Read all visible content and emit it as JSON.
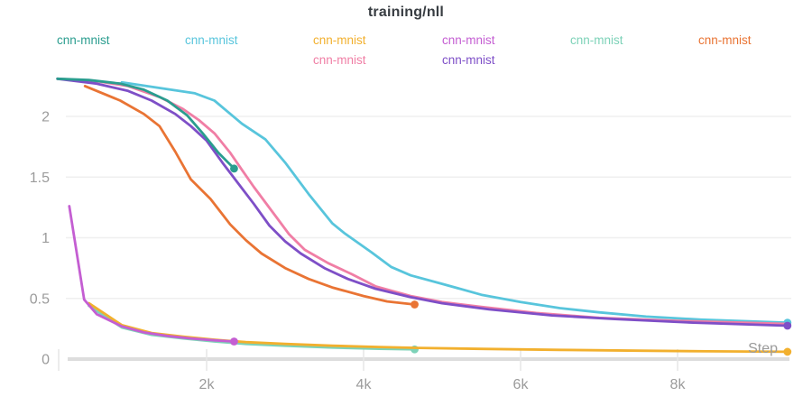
{
  "page": {
    "title": "training/nll"
  },
  "axis": {
    "x_title": "Step",
    "text_color": "#9b9b9b"
  },
  "colors": {
    "grid": "#efefef",
    "baseline": "#dddddd",
    "tick": "#e7e7e7",
    "title_text": "#383d42"
  },
  "legend": {
    "items": [
      {
        "label": "cnn-mnist",
        "color": "#2a9d8f",
        "row": 0,
        "col": 0,
        "series": "teal"
      },
      {
        "label": "cnn-mnist",
        "color": "#58c5dc",
        "row": 0,
        "col": 1,
        "series": "cyan"
      },
      {
        "label": "cnn-mnist",
        "color": "#f2b02e",
        "row": 0,
        "col": 2,
        "series": "gold"
      },
      {
        "label": "cnn-mnist",
        "color": "#c45ed2",
        "row": 0,
        "col": 3,
        "series": "orchid"
      },
      {
        "label": "cnn-mnist",
        "color": "#7dd2b8",
        "row": 0,
        "col": 4,
        "series": "mint"
      },
      {
        "label": "cnn-mnist",
        "color": "#e97434",
        "row": 0,
        "col": 5,
        "series": "orange"
      },
      {
        "label": "cnn-mnist",
        "color": "#f07ea5",
        "row": 1,
        "col": 2,
        "series": "pink"
      },
      {
        "label": "cnn-mnist",
        "color": "#7e4fc7",
        "row": 1,
        "col": 3,
        "series": "purple"
      }
    ]
  },
  "chart_data": {
    "type": "line",
    "title": "training/nll",
    "xlabel": "Step",
    "ylabel": "",
    "xlim": [
      0,
      9600
    ],
    "ylim": [
      0,
      2.33
    ],
    "grid": true,
    "legend_position": "top",
    "x_ticks": [
      {
        "step": 2000,
        "label": "2k"
      },
      {
        "step": 4000,
        "label": "4k"
      },
      {
        "step": 6000,
        "label": "6k"
      },
      {
        "step": 8000,
        "label": "8k"
      }
    ],
    "y_ticks": [
      {
        "value": 0,
        "label": "0"
      },
      {
        "value": 0.5,
        "label": "0.5"
      },
      {
        "value": 1,
        "label": "1"
      },
      {
        "value": 1.5,
        "label": "1.5"
      },
      {
        "value": 2,
        "label": "2"
      }
    ],
    "draw_order": [
      "mint",
      "gold",
      "orchid",
      "cyan",
      "pink",
      "purple",
      "orange",
      "teal"
    ],
    "series": [
      {
        "id": "teal",
        "name": "cnn-mnist",
        "color": "#2a9d8f",
        "end_marker": true,
        "points": [
          [
            100,
            2.31
          ],
          [
            500,
            2.3
          ],
          [
            900,
            2.27
          ],
          [
            1200,
            2.22
          ],
          [
            1500,
            2.13
          ],
          [
            1750,
            2.01
          ],
          [
            1950,
            1.86
          ],
          [
            2150,
            1.7
          ],
          [
            2350,
            1.57
          ]
        ]
      },
      {
        "id": "cyan",
        "name": "cnn-mnist",
        "color": "#58c5dc",
        "end_marker": true,
        "points": [
          [
            920,
            2.28
          ],
          [
            1850,
            2.19
          ],
          [
            2100,
            2.13
          ],
          [
            2450,
            1.94
          ],
          [
            2750,
            1.81
          ],
          [
            3000,
            1.62
          ],
          [
            3300,
            1.36
          ],
          [
            3600,
            1.12
          ],
          [
            3750,
            1.04
          ],
          [
            4100,
            0.88
          ],
          [
            4350,
            0.76
          ],
          [
            4600,
            0.69
          ],
          [
            5000,
            0.62
          ],
          [
            5500,
            0.53
          ],
          [
            6000,
            0.47
          ],
          [
            6500,
            0.42
          ],
          [
            7000,
            0.385
          ],
          [
            7600,
            0.35
          ],
          [
            8300,
            0.325
          ],
          [
            9400,
            0.3
          ]
        ]
      },
      {
        "id": "gold",
        "name": "cnn-mnist",
        "color": "#f2b02e",
        "end_marker": true,
        "points": [
          [
            500,
            0.46
          ],
          [
            920,
            0.28
          ],
          [
            1300,
            0.215
          ],
          [
            1700,
            0.185
          ],
          [
            2100,
            0.16
          ],
          [
            2500,
            0.14
          ],
          [
            3000,
            0.125
          ],
          [
            3600,
            0.11
          ],
          [
            4200,
            0.1
          ],
          [
            4700,
            0.092
          ],
          [
            5500,
            0.084
          ],
          [
            6500,
            0.076
          ],
          [
            7500,
            0.069
          ],
          [
            8400,
            0.064
          ],
          [
            9400,
            0.06
          ]
        ]
      },
      {
        "id": "orchid",
        "name": "cnn-mnist",
        "color": "#c45ed2",
        "end_marker": true,
        "points": [
          [
            250,
            1.26
          ],
          [
            440,
            0.49
          ],
          [
            600,
            0.37
          ],
          [
            920,
            0.27
          ],
          [
            1200,
            0.22
          ],
          [
            1500,
            0.19
          ],
          [
            1800,
            0.17
          ],
          [
            2100,
            0.155
          ],
          [
            2350,
            0.145
          ]
        ]
      },
      {
        "id": "mint",
        "name": "cnn-mnist",
        "color": "#7dd2b8",
        "end_marker": true,
        "points": [
          [
            500,
            0.44
          ],
          [
            920,
            0.26
          ],
          [
            1300,
            0.2
          ],
          [
            1700,
            0.17
          ],
          [
            2100,
            0.145
          ],
          [
            2500,
            0.125
          ],
          [
            3000,
            0.11
          ],
          [
            3600,
            0.095
          ],
          [
            4200,
            0.085
          ],
          [
            4650,
            0.08
          ]
        ]
      },
      {
        "id": "orange",
        "name": "cnn-mnist",
        "color": "#e97434",
        "end_marker": true,
        "points": [
          [
            450,
            2.25
          ],
          [
            900,
            2.13
          ],
          [
            1200,
            2.02
          ],
          [
            1400,
            1.92
          ],
          [
            1600,
            1.71
          ],
          [
            1800,
            1.48
          ],
          [
            2050,
            1.32
          ],
          [
            2300,
            1.11
          ],
          [
            2500,
            0.98
          ],
          [
            2700,
            0.87
          ],
          [
            3000,
            0.75
          ],
          [
            3300,
            0.66
          ],
          [
            3600,
            0.59
          ],
          [
            4000,
            0.52
          ],
          [
            4300,
            0.475
          ],
          [
            4650,
            0.45
          ]
        ]
      },
      {
        "id": "pink",
        "name": "cnn-mnist",
        "color": "#f07ea5",
        "end_marker": false,
        "points": [
          [
            100,
            2.31
          ],
          [
            600,
            2.29
          ],
          [
            1000,
            2.25
          ],
          [
            1400,
            2.16
          ],
          [
            1700,
            2.06
          ],
          [
            1900,
            1.97
          ],
          [
            2100,
            1.86
          ],
          [
            2300,
            1.7
          ],
          [
            2450,
            1.56
          ],
          [
            2600,
            1.42
          ],
          [
            2900,
            1.16
          ],
          [
            3050,
            1.03
          ],
          [
            3250,
            0.9
          ],
          [
            3550,
            0.79
          ],
          [
            3850,
            0.7
          ],
          [
            4150,
            0.6
          ],
          [
            4600,
            0.52
          ],
          [
            5000,
            0.47
          ],
          [
            5500,
            0.43
          ],
          [
            6200,
            0.38
          ],
          [
            7000,
            0.34
          ],
          [
            8000,
            0.315
          ],
          [
            9400,
            0.29
          ]
        ]
      },
      {
        "id": "purple",
        "name": "cnn-mnist",
        "color": "#7e4fc7",
        "end_marker": true,
        "points": [
          [
            100,
            2.31
          ],
          [
            600,
            2.27
          ],
          [
            1000,
            2.21
          ],
          [
            1300,
            2.13
          ],
          [
            1600,
            2.02
          ],
          [
            1800,
            1.92
          ],
          [
            2000,
            1.8
          ],
          [
            2200,
            1.62
          ],
          [
            2400,
            1.45
          ],
          [
            2600,
            1.28
          ],
          [
            2800,
            1.1
          ],
          [
            3000,
            0.97
          ],
          [
            3200,
            0.87
          ],
          [
            3500,
            0.75
          ],
          [
            3800,
            0.66
          ],
          [
            4150,
            0.58
          ],
          [
            4600,
            0.51
          ],
          [
            5000,
            0.46
          ],
          [
            5600,
            0.41
          ],
          [
            6400,
            0.36
          ],
          [
            7200,
            0.33
          ],
          [
            8200,
            0.3
          ],
          [
            9400,
            0.275
          ]
        ]
      }
    ]
  }
}
